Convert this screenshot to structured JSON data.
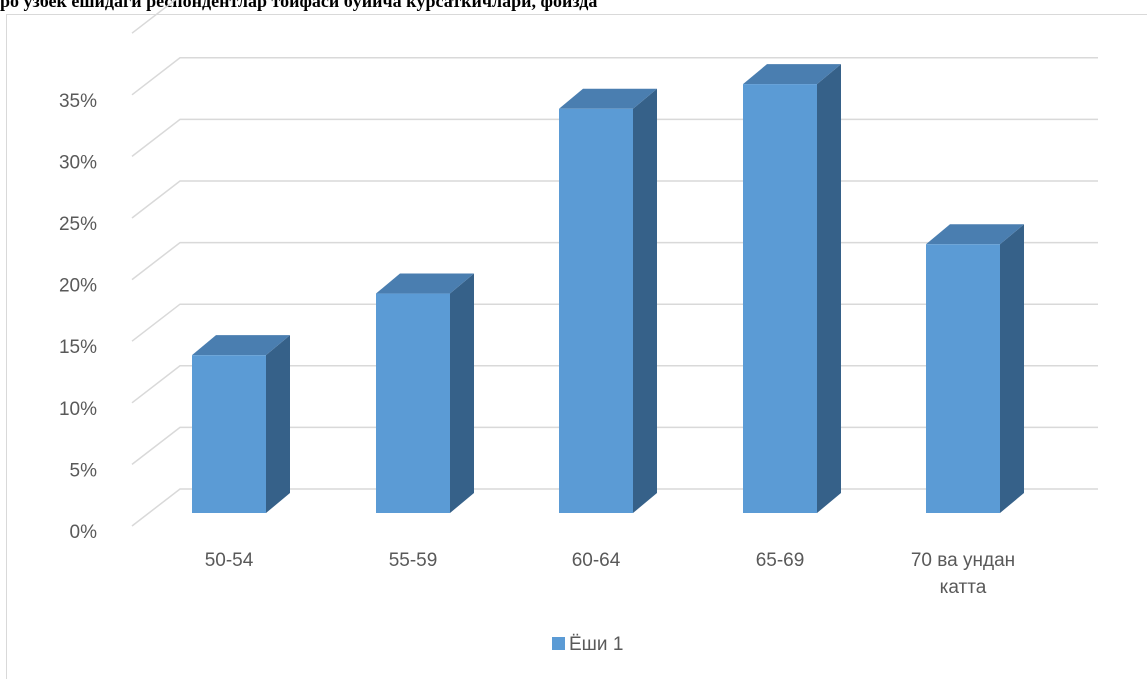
{
  "header_fragment": "ро ўзбек ёшидаги респондентлар тоифаси бўйича кўрсаткичлари, фоизда",
  "chart_data": {
    "type": "bar",
    "categories": [
      "50-54",
      "55-59",
      "60-64",
      "65-69",
      "70 ва ундан катта"
    ],
    "series": [
      {
        "name": "Ёши 1",
        "values": [
          12,
          17,
          32,
          34,
          21
        ]
      }
    ],
    "ylim": [
      0,
      35
    ],
    "yticks": [
      "0%",
      "5%",
      "10%",
      "15%",
      "20%",
      "25%",
      "30%",
      "35%"
    ],
    "grid": true,
    "legend_position": "bottom",
    "is_3d": true,
    "colors": {
      "front": "#5b9bd5",
      "side": "#366189",
      "top": "#4a7eb0",
      "grid": "#d9d9d9"
    }
  }
}
